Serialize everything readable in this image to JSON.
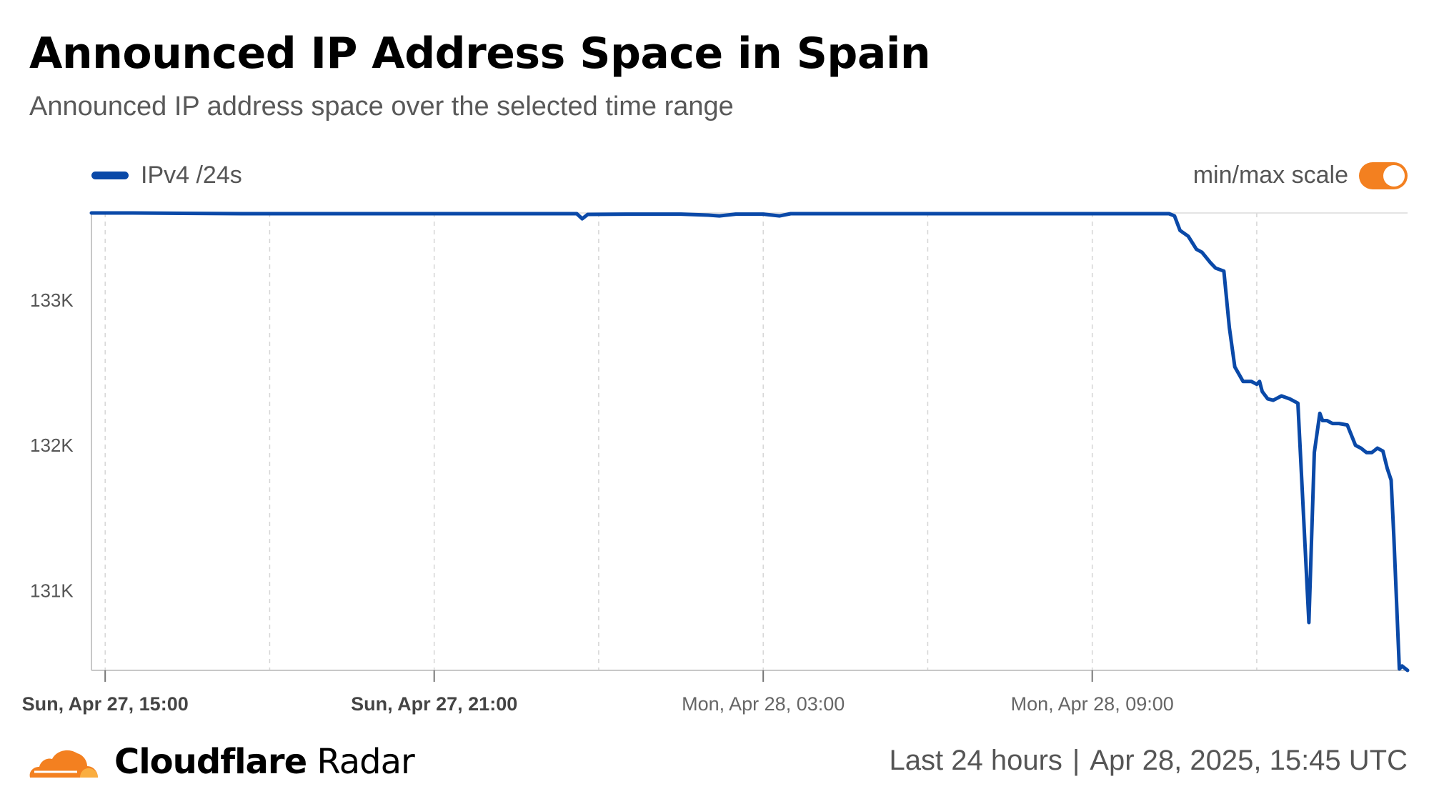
{
  "header": {
    "title": "Announced IP Address Space in Spain",
    "subtitle": "Announced IP address space over the selected time range"
  },
  "legend": {
    "series_label": "IPv4 /24s",
    "series_color": "#0a49a8"
  },
  "scale_toggle": {
    "label": "min/max scale",
    "on": true,
    "color": "#f38020"
  },
  "footer": {
    "brand_strong": "Cloudflare",
    "brand_light": "Radar",
    "range": "Last 24 hours",
    "separator": "|",
    "timestamp": "Apr 28, 2025, 15:45 UTC"
  },
  "chart_data": {
    "type": "line",
    "title": "Announced IP Address Space in Spain",
    "subtitle": "Announced IP address space over the selected time range",
    "xlabel": "",
    "ylabel": "",
    "x_unit": "hours",
    "xlim": [
      14.75,
      38.75
    ],
    "ylim": [
      130450,
      133600
    ],
    "y_ticks": [
      {
        "value": 131000,
        "label": "131K"
      },
      {
        "value": 132000,
        "label": "132K"
      },
      {
        "value": 133000,
        "label": "133K"
      }
    ],
    "x_ticks": [
      {
        "value": 15,
        "label": "Sun, Apr 27, 15:00",
        "bold": true
      },
      {
        "value": 21,
        "label": "Sun, Apr 27, 21:00",
        "bold": true
      },
      {
        "value": 27,
        "label": "Mon, Apr 28, 03:00",
        "bold": false
      },
      {
        "value": 33,
        "label": "Mon, Apr 28, 09:00",
        "bold": false
      }
    ],
    "x_grid": [
      15,
      18,
      21,
      24,
      27,
      30,
      33,
      36
    ],
    "grid": true,
    "legend_position": "top-left",
    "series": [
      {
        "name": "IPv4 /24s",
        "color": "#0a49a8",
        "x": [
          14.75,
          15.5,
          17.5,
          19.5,
          21.5,
          23.0,
          23.6,
          23.7,
          23.8,
          24.5,
          25.5,
          26.0,
          26.2,
          26.5,
          27.0,
          27.3,
          27.5,
          28.0,
          30.0,
          32.0,
          34.0,
          34.4,
          34.5,
          34.6,
          34.75,
          34.9,
          35.0,
          35.15,
          35.25,
          35.4,
          35.5,
          35.6,
          35.75,
          35.9,
          36.0,
          36.05,
          36.1,
          36.2,
          36.3,
          36.45,
          36.6,
          36.75,
          36.95,
          37.05,
          37.15,
          37.2,
          37.28,
          37.38,
          37.5,
          37.65,
          37.8,
          37.9,
          38.0,
          38.1,
          38.2,
          38.3,
          38.38,
          38.45,
          38.5,
          38.6,
          38.65,
          38.75
        ],
        "y": [
          133600,
          133600,
          133595,
          133595,
          133595,
          133595,
          133595,
          133560,
          133590,
          133592,
          133592,
          133585,
          133580,
          133592,
          133592,
          133580,
          133595,
          133595,
          133595,
          133595,
          133595,
          133595,
          133580,
          133480,
          133440,
          133350,
          133330,
          133260,
          133220,
          133200,
          132810,
          132540,
          132440,
          132440,
          132420,
          132440,
          132370,
          132320,
          132310,
          132340,
          132320,
          132290,
          130780,
          131950,
          132220,
          132170,
          132170,
          132150,
          132150,
          132140,
          132000,
          131980,
          131950,
          131950,
          131980,
          131960,
          131840,
          131760,
          131370,
          130460,
          130480,
          130450
        ]
      }
    ]
  }
}
